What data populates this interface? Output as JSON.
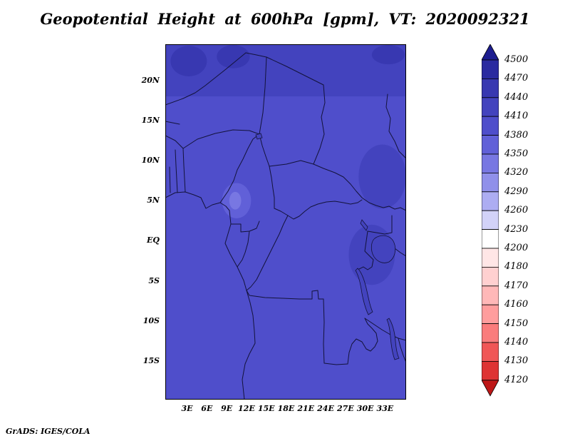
{
  "title": "Geopotential Height at 600hPa [gpm], VT: 2020092321",
  "credit": "GrADS: IGES/COLA",
  "colorbar": {
    "labels": [
      "4500",
      "4470",
      "4440",
      "4410",
      "4380",
      "4350",
      "4320",
      "4290",
      "4260",
      "4230",
      "4200",
      "4180",
      "4170",
      "4160",
      "4150",
      "4140",
      "4130",
      "4120"
    ],
    "palette": [
      "#1d1d8f",
      "#2a2aa0",
      "#3838b1",
      "#4343be",
      "#4f4ecb",
      "#6160d8",
      "#7877e2",
      "#9090ea",
      "#adadf2",
      "#d2d2f8",
      "#ffffff",
      "#ffe6e6",
      "#ffd0d0",
      "#ffb8b8",
      "#ff9d9d",
      "#fa7c7c",
      "#f05656",
      "#de3333",
      "#bd1717"
    ],
    "outline_color": "#000000"
  },
  "chart_data": {
    "type": "heatmap",
    "title": "Geopotential Height at 600hPa [gpm], VT: 2020092321",
    "variable": "Geopotential Height",
    "pressure_level": "600hPa",
    "units": "gpm",
    "valid_time": "2020092321",
    "legend_position": "right",
    "lon_range": [
      -0.3,
      36.2
    ],
    "lat_range": [
      -19.8,
      24.5
    ],
    "x_ticks": [
      {
        "label": "3E",
        "lon": 3
      },
      {
        "label": "6E",
        "lon": 6
      },
      {
        "label": "9E",
        "lon": 9
      },
      {
        "label": "12E",
        "lon": 12
      },
      {
        "label": "15E",
        "lon": 15
      },
      {
        "label": "18E",
        "lon": 18
      },
      {
        "label": "21E",
        "lon": 21
      },
      {
        "label": "24E",
        "lon": 24
      },
      {
        "label": "27E",
        "lon": 27
      },
      {
        "label": "30E",
        "lon": 30
      },
      {
        "label": "33E",
        "lon": 33
      }
    ],
    "y_ticks": [
      {
        "label": "20N",
        "lat": 20
      },
      {
        "label": "15N",
        "lat": 15
      },
      {
        "label": "10N",
        "lat": 10
      },
      {
        "label": "5N",
        "lat": 5
      },
      {
        "label": "EQ",
        "lat": 0
      },
      {
        "label": "5S",
        "lat": -5
      },
      {
        "label": "10S",
        "lat": -10
      },
      {
        "label": "15S",
        "lat": -15
      }
    ],
    "contour_levels": [
      4120,
      4130,
      4140,
      4150,
      4160,
      4170,
      4180,
      4200,
      4230,
      4260,
      4290,
      4320,
      4350,
      4380,
      4410,
      4440,
      4470,
      4500
    ],
    "field_regions": [
      {
        "name": "domain-background",
        "shape": "band",
        "lon": [
          -0.3,
          36.2
        ],
        "lat": [
          -19.8,
          24.5
        ],
        "value_range": [
          4380,
          4410
        ]
      },
      {
        "name": "northern-sahara-band",
        "shape": "band",
        "lon": [
          -0.3,
          36.2
        ],
        "lat": [
          18,
          24.5
        ],
        "value_range": [
          4410,
          4440
        ]
      },
      {
        "name": "sahara-high-west",
        "shape": "blob",
        "lon": [
          0.5,
          6
        ],
        "lat": [
          20.5,
          24.3
        ],
        "value_range": [
          4440,
          4470
        ]
      },
      {
        "name": "sahara-high-central",
        "shape": "blob",
        "lon": [
          7.5,
          12.5
        ],
        "lat": [
          21.5,
          24.4
        ],
        "value_range": [
          4440,
          4470
        ]
      },
      {
        "name": "sahara-high-east",
        "shape": "blob",
        "lon": [
          31,
          36
        ],
        "lat": [
          22,
          24.4
        ],
        "value_range": [
          4440,
          4470
        ]
      },
      {
        "name": "ethiopian-highlands",
        "shape": "blob",
        "lon": [
          29,
          36.2
        ],
        "lat": [
          4,
          12
        ],
        "value_range": [
          4410,
          4440
        ]
      },
      {
        "name": "east-african-highlands",
        "shape": "blob",
        "lon": [
          27.5,
          34.5
        ],
        "lat": [
          -5.5,
          2
        ],
        "value_range": [
          4410,
          4440
        ]
      },
      {
        "name": "cameroon-highlands-low",
        "shape": "blob",
        "lon": [
          8.3,
          12.7
        ],
        "lat": [
          2.8,
          7.2
        ],
        "value_range": [
          4350,
          4380
        ]
      },
      {
        "name": "cameroon-highlands-core",
        "shape": "blob",
        "lon": [
          9.4,
          11.2
        ],
        "lat": [
          3.9,
          6.1
        ],
        "value_range": [
          4320,
          4350
        ]
      }
    ]
  }
}
